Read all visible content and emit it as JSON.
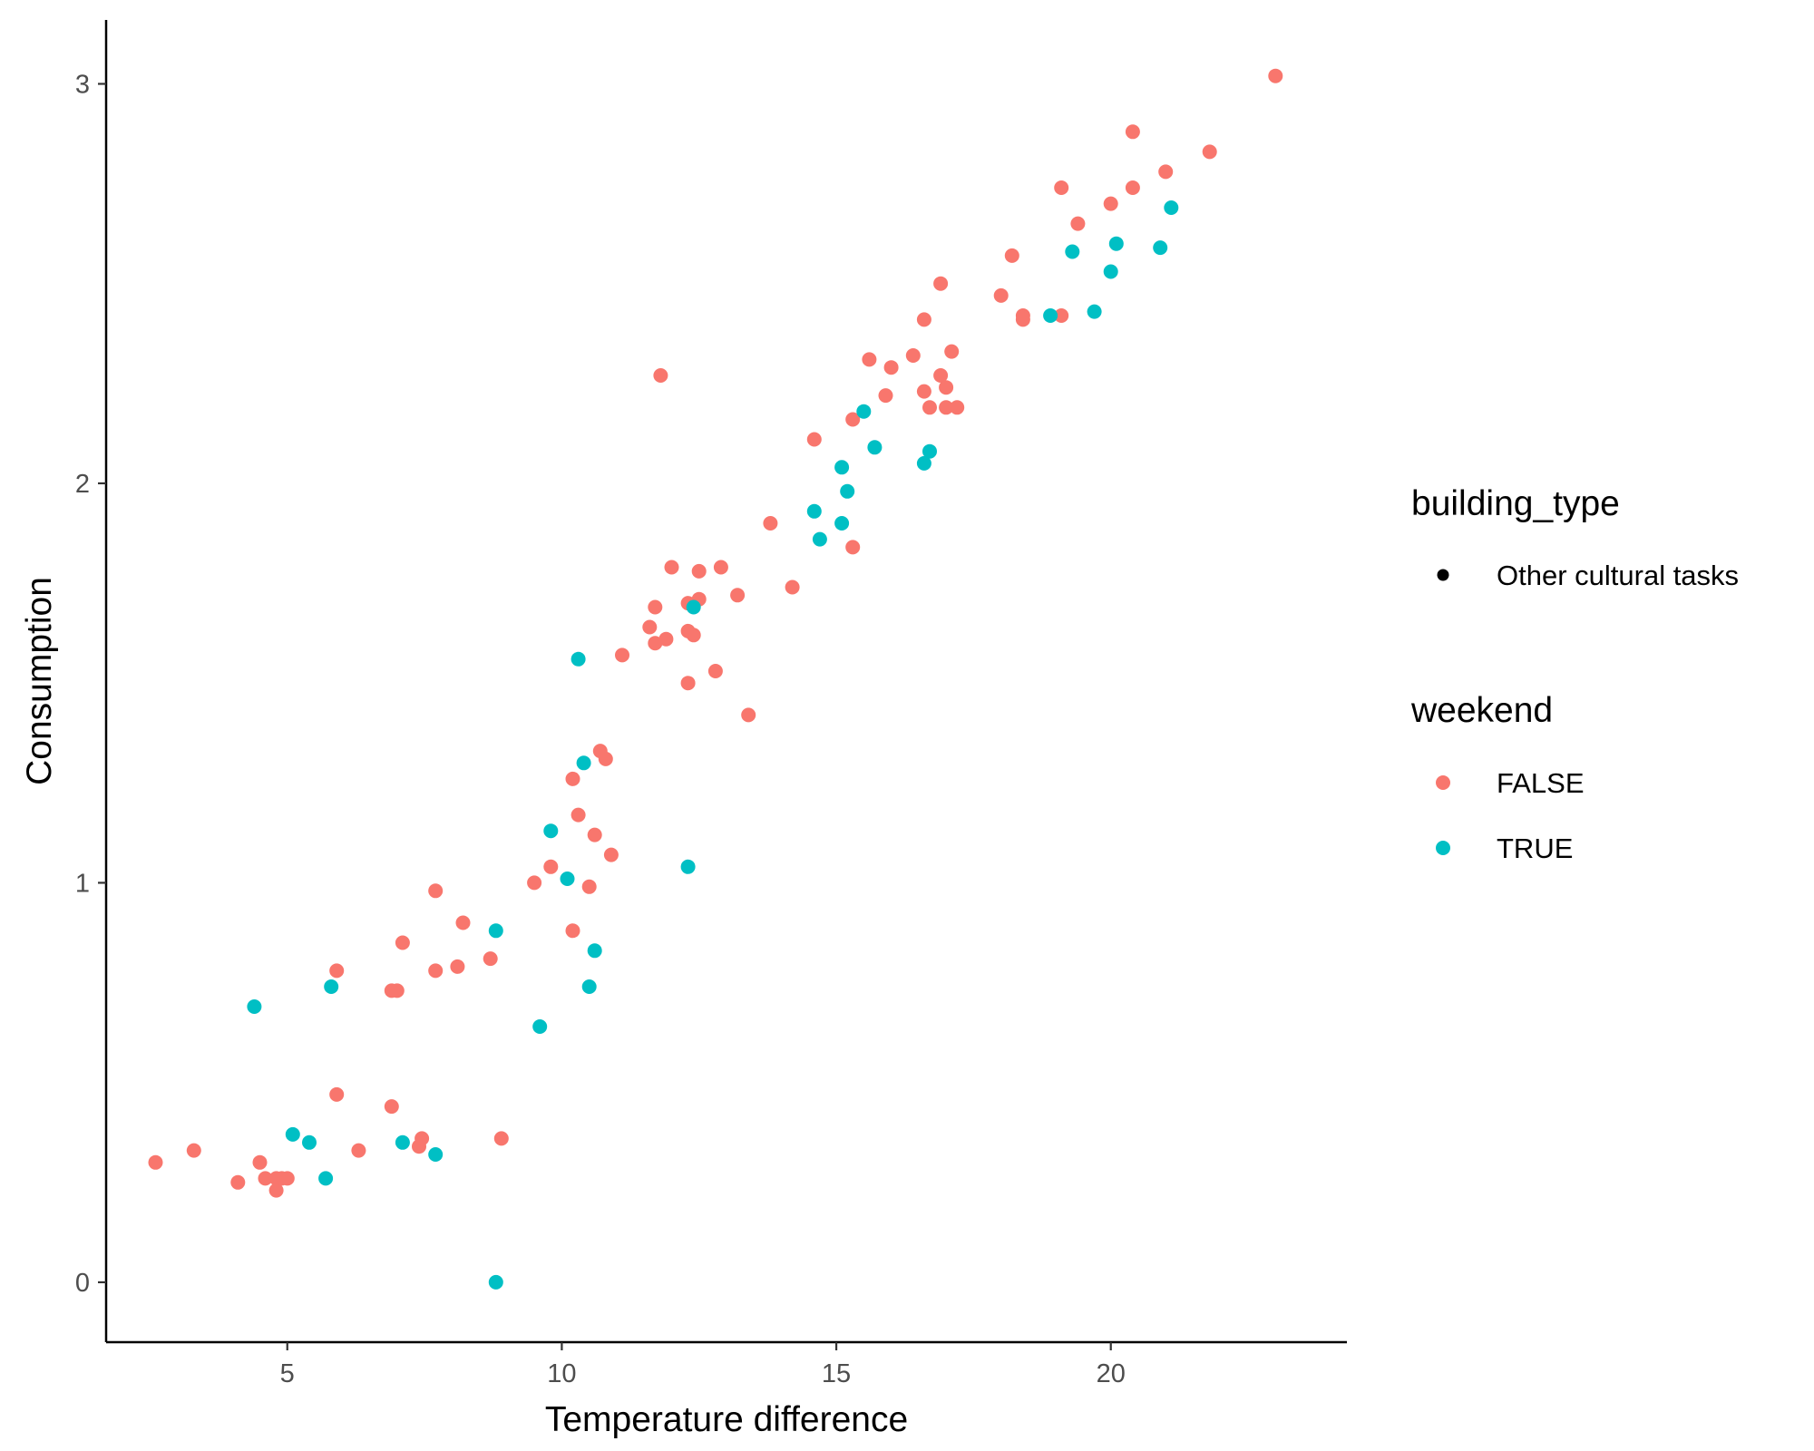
{
  "chart_data": {
    "type": "scatter",
    "title": "",
    "xlabel": "Temperature difference",
    "ylabel": "Consumption",
    "xlim": [
      1.7,
      24.3
    ],
    "ylim": [
      -0.15,
      3.16
    ],
    "xticks": [
      "5",
      "10",
      "15",
      "20"
    ],
    "yticks": [
      "0",
      "1",
      "2",
      "3"
    ],
    "grid": false,
    "legend_position": "right",
    "legends": {
      "building_type": {
        "title": "building_type",
        "items": [
          {
            "label": "Other cultural tasks",
            "color": "#000000"
          }
        ]
      },
      "weekend": {
        "title": "weekend",
        "items": [
          {
            "label": "FALSE",
            "color": "#F8766D"
          },
          {
            "label": "TRUE",
            "color": "#00BFC4"
          }
        ]
      }
    },
    "series": [
      {
        "name": "FALSE",
        "color": "#F8766D",
        "points": [
          [
            2.6,
            0.3
          ],
          [
            3.3,
            0.33
          ],
          [
            4.1,
            0.25
          ],
          [
            4.5,
            0.3
          ],
          [
            4.6,
            0.26
          ],
          [
            4.8,
            0.26
          ],
          [
            4.8,
            0.23
          ],
          [
            4.9,
            0.26
          ],
          [
            5.0,
            0.26
          ],
          [
            5.9,
            0.47
          ],
          [
            6.3,
            0.33
          ],
          [
            6.9,
            0.44
          ],
          [
            7.4,
            0.34
          ],
          [
            7.45,
            0.36
          ],
          [
            8.9,
            0.36
          ],
          [
            5.9,
            0.78
          ],
          [
            6.9,
            0.73
          ],
          [
            7.0,
            0.73
          ],
          [
            7.1,
            0.85
          ],
          [
            7.7,
            0.78
          ],
          [
            7.7,
            0.98
          ],
          [
            8.1,
            0.79
          ],
          [
            8.2,
            0.9
          ],
          [
            8.7,
            0.81
          ],
          [
            9.5,
            1.0
          ],
          [
            9.8,
            1.04
          ],
          [
            10.2,
            0.88
          ],
          [
            10.2,
            1.26
          ],
          [
            10.3,
            1.17
          ],
          [
            10.5,
            0.99
          ],
          [
            10.6,
            1.12
          ],
          [
            10.7,
            1.33
          ],
          [
            10.8,
            1.31
          ],
          [
            10.9,
            1.07
          ],
          [
            11.1,
            1.57
          ],
          [
            11.6,
            1.64
          ],
          [
            11.7,
            1.69
          ],
          [
            11.7,
            1.6
          ],
          [
            11.8,
            2.27
          ],
          [
            11.9,
            1.61
          ],
          [
            12.0,
            1.79
          ],
          [
            12.3,
            1.5
          ],
          [
            12.3,
            1.7
          ],
          [
            12.3,
            1.63
          ],
          [
            12.4,
            1.62
          ],
          [
            12.5,
            1.71
          ],
          [
            12.5,
            1.78
          ],
          [
            12.8,
            1.53
          ],
          [
            12.9,
            1.79
          ],
          [
            13.2,
            1.72
          ],
          [
            13.4,
            1.42
          ],
          [
            13.8,
            1.9
          ],
          [
            14.2,
            1.74
          ],
          [
            14.6,
            2.11
          ],
          [
            15.3,
            2.16
          ],
          [
            15.3,
            1.84
          ],
          [
            15.6,
            2.31
          ],
          [
            15.9,
            2.22
          ],
          [
            16.0,
            2.29
          ],
          [
            16.4,
            2.32
          ],
          [
            16.6,
            2.23
          ],
          [
            16.6,
            2.41
          ],
          [
            16.7,
            2.19
          ],
          [
            16.9,
            2.27
          ],
          [
            16.9,
            2.5
          ],
          [
            17.0,
            2.24
          ],
          [
            17.0,
            2.19
          ],
          [
            17.1,
            2.33
          ],
          [
            17.2,
            2.19
          ],
          [
            18.0,
            2.47
          ],
          [
            18.2,
            2.57
          ],
          [
            18.4,
            2.42
          ],
          [
            18.4,
            2.41
          ],
          [
            19.1,
            2.74
          ],
          [
            19.1,
            2.42
          ],
          [
            19.4,
            2.65
          ],
          [
            20.0,
            2.7
          ],
          [
            20.4,
            2.88
          ],
          [
            20.4,
            2.74
          ],
          [
            21.0,
            2.78
          ],
          [
            21.8,
            2.83
          ],
          [
            23.0,
            3.02
          ]
        ]
      },
      {
        "name": "TRUE",
        "color": "#00BFC4",
        "points": [
          [
            4.4,
            0.69
          ],
          [
            5.1,
            0.37
          ],
          [
            5.4,
            0.35
          ],
          [
            5.7,
            0.26
          ],
          [
            5.8,
            0.74
          ],
          [
            7.1,
            0.35
          ],
          [
            7.7,
            0.32
          ],
          [
            8.8,
            0.88
          ],
          [
            8.8,
            0.0
          ],
          [
            9.6,
            0.64
          ],
          [
            9.8,
            1.13
          ],
          [
            10.1,
            1.01
          ],
          [
            10.3,
            1.56
          ],
          [
            10.4,
            1.3
          ],
          [
            10.5,
            0.74
          ],
          [
            10.6,
            0.83
          ],
          [
            12.3,
            1.04
          ],
          [
            12.4,
            1.69
          ],
          [
            14.6,
            1.93
          ],
          [
            14.7,
            1.86
          ],
          [
            15.1,
            1.9
          ],
          [
            15.1,
            2.04
          ],
          [
            15.2,
            1.98
          ],
          [
            15.5,
            2.18
          ],
          [
            15.7,
            2.09
          ],
          [
            16.6,
            2.05
          ],
          [
            16.7,
            2.08
          ],
          [
            18.9,
            2.42
          ],
          [
            19.3,
            2.58
          ],
          [
            19.7,
            2.43
          ],
          [
            20.0,
            2.53
          ],
          [
            20.1,
            2.6
          ],
          [
            20.9,
            2.59
          ],
          [
            21.1,
            2.69
          ]
        ]
      }
    ]
  }
}
